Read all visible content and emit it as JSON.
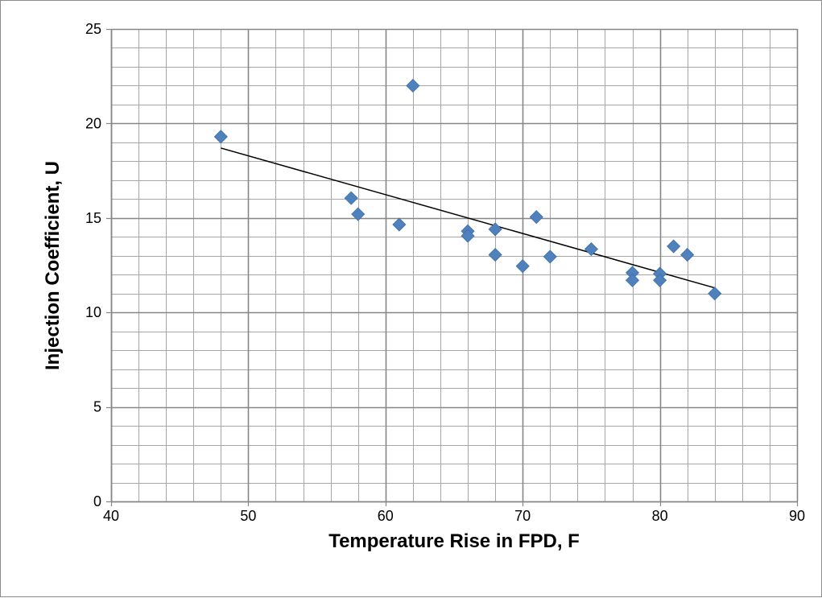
{
  "chart_data": {
    "type": "scatter",
    "title": "",
    "xlabel": "Temperature Rise in FPD, F",
    "ylabel": "Injection Coefficient, U",
    "xlim": [
      40,
      90
    ],
    "ylim": [
      0,
      25
    ],
    "x_major_ticks": [
      40,
      50,
      60,
      70,
      80,
      90
    ],
    "y_major_ticks": [
      0,
      5,
      10,
      15,
      20,
      25
    ],
    "x_tick_labels": [
      "40",
      "50",
      "60",
      "70",
      "80",
      "90"
    ],
    "y_tick_labels": [
      "0",
      "5",
      "10",
      "15",
      "20",
      "25"
    ],
    "x_minor_step": 2,
    "y_minor_step": 1,
    "grid": true,
    "legend": "none",
    "marker": "diamond",
    "marker_color": "#4f81bd",
    "trendline_color": "#000000",
    "grid_color": "#a6a6a6",
    "series": [
      {
        "x": [
          48,
          57.5,
          58,
          61,
          62,
          66,
          66,
          68,
          68,
          70,
          71,
          72,
          75,
          78,
          78,
          80,
          80,
          81,
          82,
          84
        ],
        "y": [
          19.3,
          16.05,
          15.2,
          14.65,
          22,
          14.3,
          14.05,
          14.4,
          13.05,
          12.45,
          15.05,
          12.95,
          13.35,
          12.1,
          11.7,
          12.05,
          11.7,
          13.5,
          13.05,
          11
        ]
      }
    ],
    "trendline": {
      "x": [
        48,
        84
      ],
      "y": [
        18.7,
        11.3
      ]
    }
  }
}
